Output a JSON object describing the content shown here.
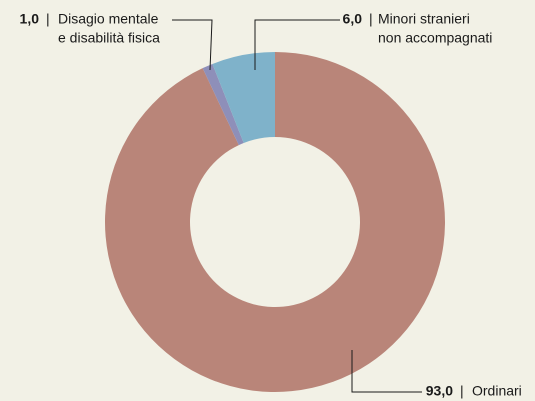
{
  "chart_data": {
    "type": "donut",
    "categories": [
      [
        "Ordinari"
      ],
      [
        "Disagio mentale",
        "e disabilità fisica"
      ],
      [
        "Minori stranieri",
        "non accompagnati"
      ]
    ],
    "values": [
      93.0,
      1.0,
      6.0
    ],
    "value_labels": [
      "93,0",
      "1,0",
      "6,0"
    ],
    "separator": "|",
    "colors": [
      "#b98579",
      "#8e8fb9",
      "#7fb2ca"
    ]
  }
}
